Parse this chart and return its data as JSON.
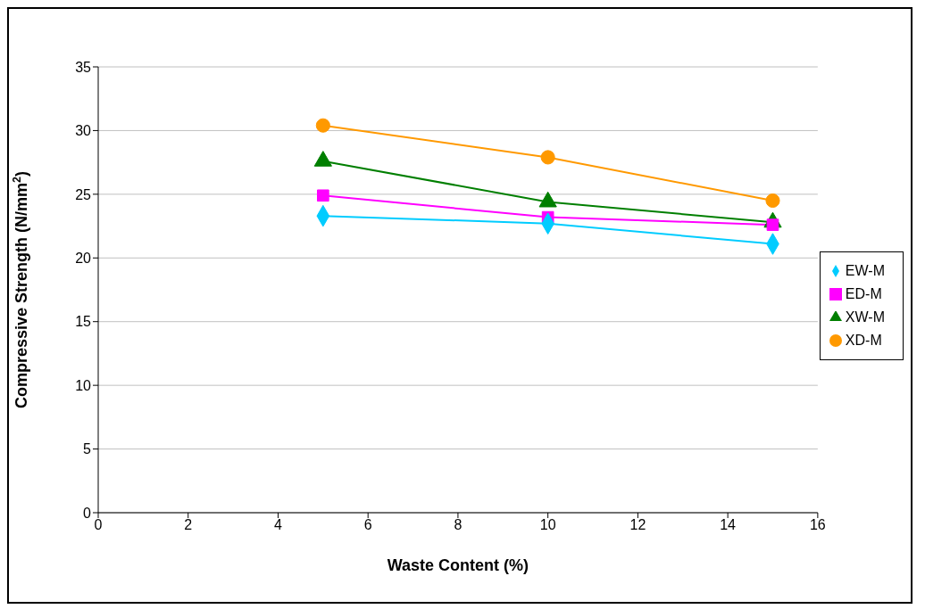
{
  "chart_data": {
    "type": "line",
    "xlabel": "Waste Content (%)",
    "ylabel": "Compressive Strength (N/mm$^{2}$)",
    "x": [
      5,
      10,
      15
    ],
    "series": [
      {
        "name": "EW-M",
        "color": "#00ccff",
        "marker": "diamond",
        "values": [
          23.3,
          22.7,
          21.1
        ]
      },
      {
        "name": "ED-M",
        "color": "#ff00ff",
        "marker": "square",
        "values": [
          24.9,
          23.2,
          22.6
        ]
      },
      {
        "name": "XW-M",
        "color": "#007f00",
        "marker": "triangle",
        "values": [
          27.6,
          24.4,
          22.8
        ]
      },
      {
        "name": "XD-M",
        "color": "#ff9900",
        "marker": "circle",
        "values": [
          30.4,
          27.9,
          24.5
        ]
      }
    ],
    "xlim": [
      0,
      16
    ],
    "xticks": [
      0,
      2,
      4,
      6,
      8,
      10,
      12,
      14,
      16
    ],
    "ylim": [
      0,
      35
    ],
    "yticks": [
      0,
      5,
      10,
      15,
      20,
      25,
      30,
      35
    ],
    "grid": "y",
    "legend": "right",
    "line_style": "solid"
  }
}
